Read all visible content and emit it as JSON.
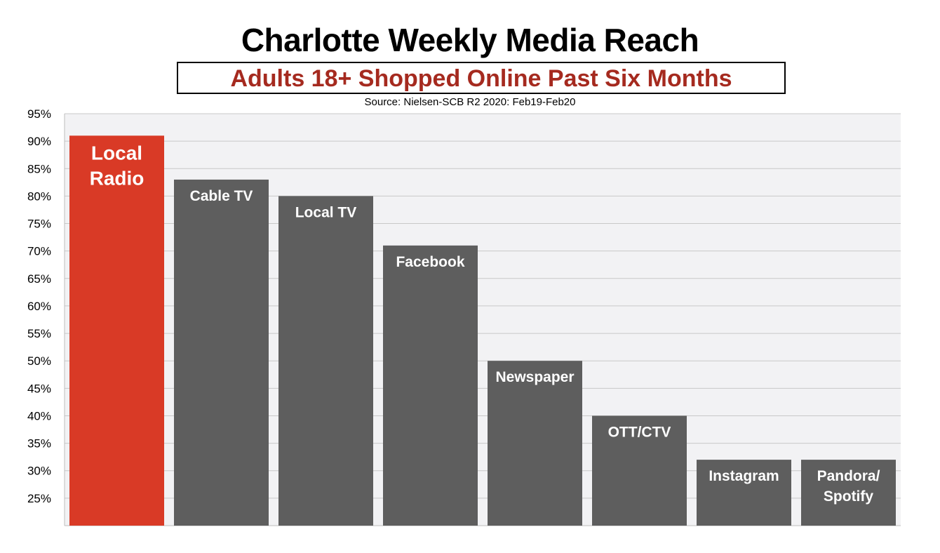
{
  "chart_data": {
    "type": "bar",
    "title": "Charlotte Weekly Media Reach",
    "subtitle": "Adults 18+ Shopped Online Past Six Months",
    "source": "Source: Nielsen-SCB R2 2020: Feb19-Feb20",
    "categories": [
      [
        "Local",
        "Radio"
      ],
      [
        "Cable TV"
      ],
      [
        "Local TV"
      ],
      [
        "Facebook"
      ],
      [
        "Newspaper"
      ],
      [
        "OTT/CTV"
      ],
      [
        "Instagram"
      ],
      [
        "Pandora/",
        "Spotify"
      ]
    ],
    "values": [
      91,
      83,
      80,
      71,
      50,
      40,
      32,
      32
    ],
    "bar_colors": [
      "#d93a26",
      "#5e5e5e",
      "#5e5e5e",
      "#5e5e5e",
      "#5e5e5e",
      "#5e5e5e",
      "#5e5e5e",
      "#5e5e5e"
    ],
    "ylim": [
      20,
      95
    ],
    "yticks": [
      "95%",
      "90%",
      "85%",
      "80%",
      "75%",
      "70%",
      "65%",
      "60%",
      "55%",
      "50%",
      "45%",
      "40%",
      "35%",
      "30%",
      "25%"
    ],
    "ytick_values": [
      95,
      90,
      85,
      80,
      75,
      70,
      65,
      60,
      55,
      50,
      45,
      40,
      35,
      30,
      25
    ],
    "grid": true,
    "xlabel": "",
    "ylabel": "",
    "plot_background": "#f2f2f4",
    "grid_color": "#c8c8c8"
  }
}
